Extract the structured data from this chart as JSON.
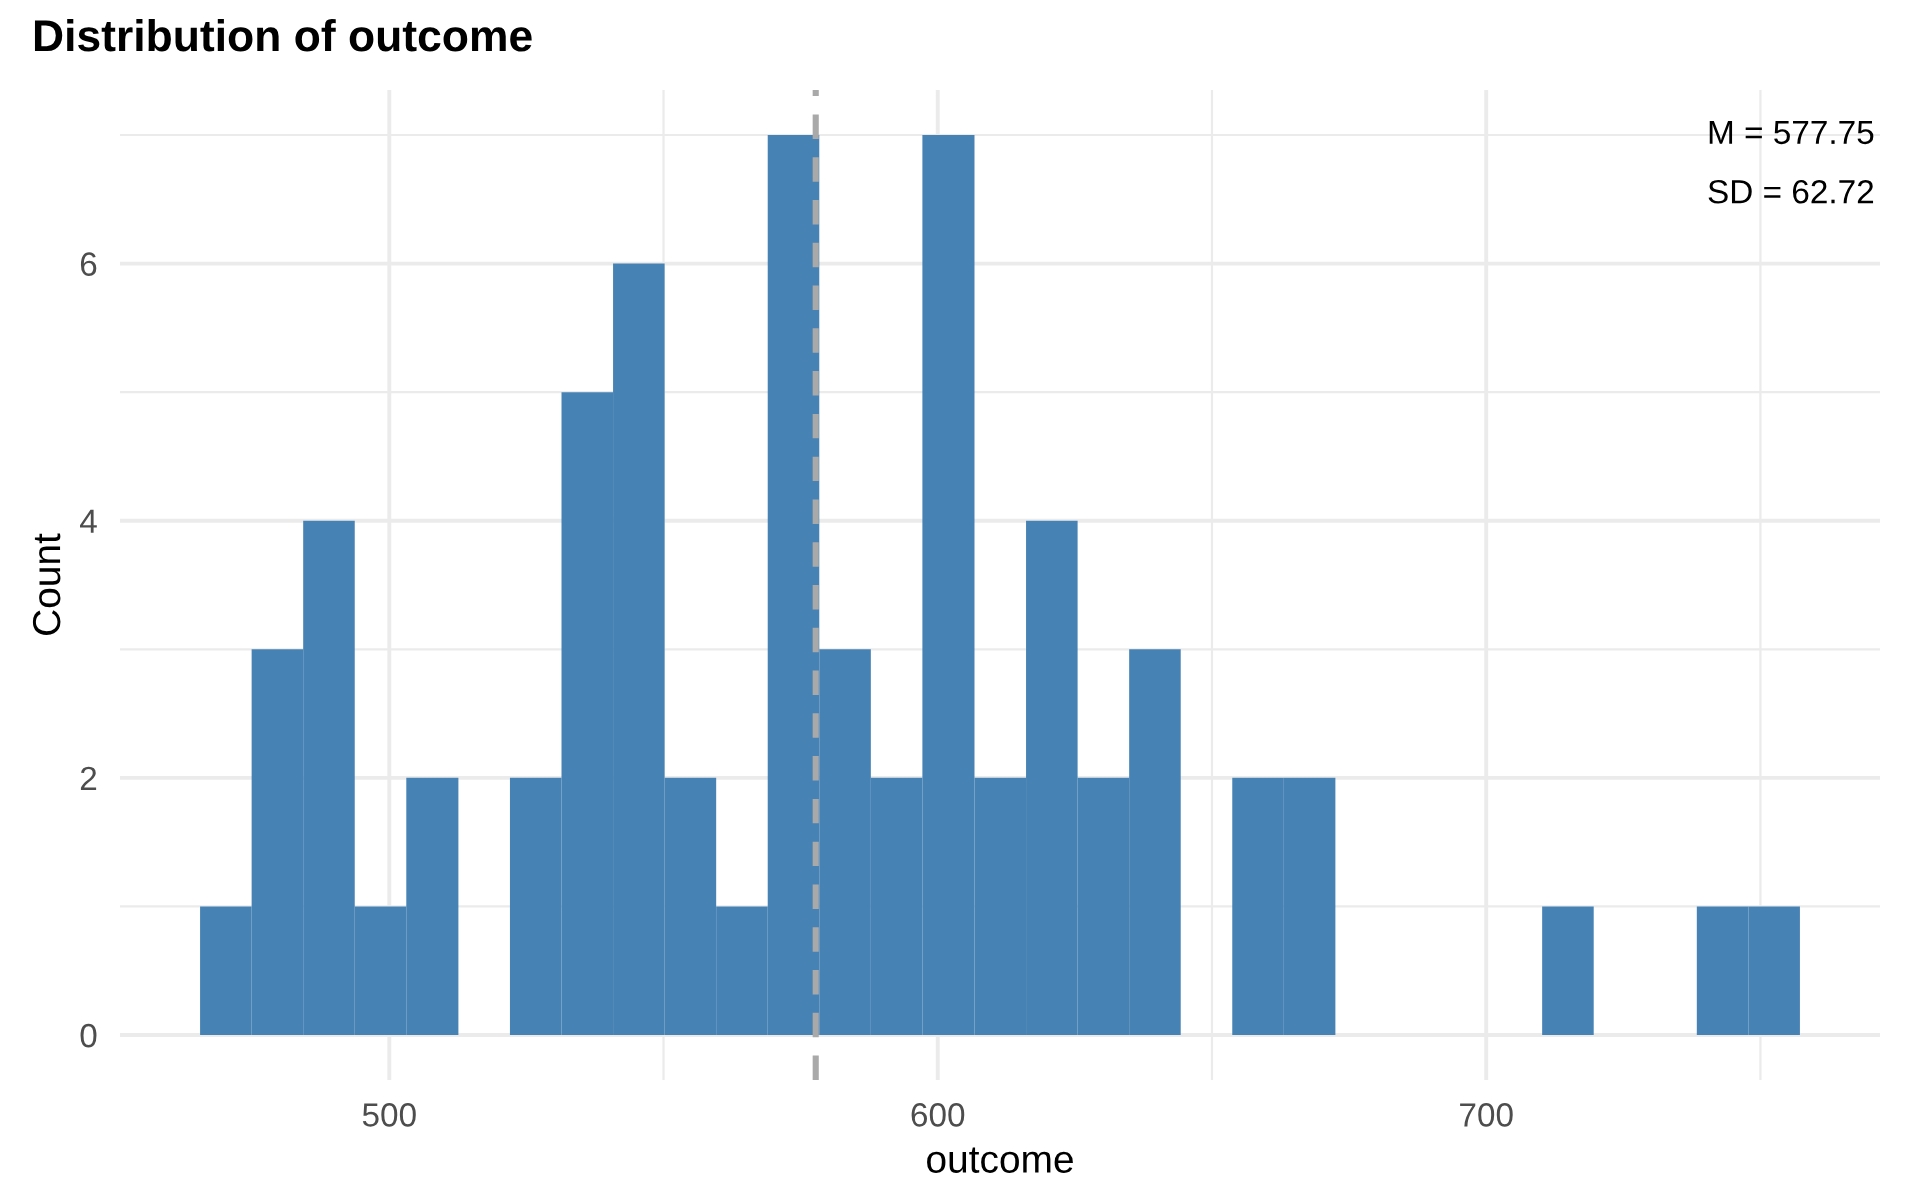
{
  "chart_data": {
    "type": "histogram",
    "title": "Distribution of outcome",
    "xlabel": "outcome",
    "ylabel": "Count",
    "bins": [
      465.5,
      474.9,
      484.3,
      493.7,
      503.1,
      512.6,
      522.0,
      531.4,
      540.8,
      550.2,
      559.6,
      569.0,
      578.4,
      587.8,
      597.2,
      606.7,
      616.1,
      625.5,
      634.9,
      644.3,
      653.7,
      663.1,
      672.5,
      710.2,
      719.6,
      738.4,
      747.8,
      757.2
    ],
    "values": [
      1,
      3,
      4,
      1,
      2,
      0,
      2,
      5,
      6,
      2,
      1,
      7,
      3,
      2,
      7,
      2,
      4,
      2,
      3,
      0,
      2,
      2,
      0,
      1,
      0,
      1,
      1
    ],
    "color": "#4682b4",
    "xlim": [
      450.9,
      771.8
    ],
    "ylim": [
      -0.35,
      7.35
    ],
    "xticks": [
      500,
      {
        "value": 550,
        "label": null
      },
      600,
      {
        "value": 650,
        "label": null
      },
      700,
      {
        "value": 750,
        "label": null
      }
    ],
    "yticks": [
      0,
      {
        "value": 1,
        "label": null
      },
      2,
      {
        "value": 3,
        "label": null
      },
      4,
      {
        "value": 5,
        "label": null
      },
      6,
      {
        "value": 7,
        "label": null
      }
    ],
    "ref_lines": [
      {
        "axis": "x",
        "value": 577.75,
        "color": "#a9a9a9",
        "line_style": "dashed"
      }
    ],
    "annotations": [
      "M = 577.75",
      "SD = 62.72"
    ],
    "grid": true
  }
}
